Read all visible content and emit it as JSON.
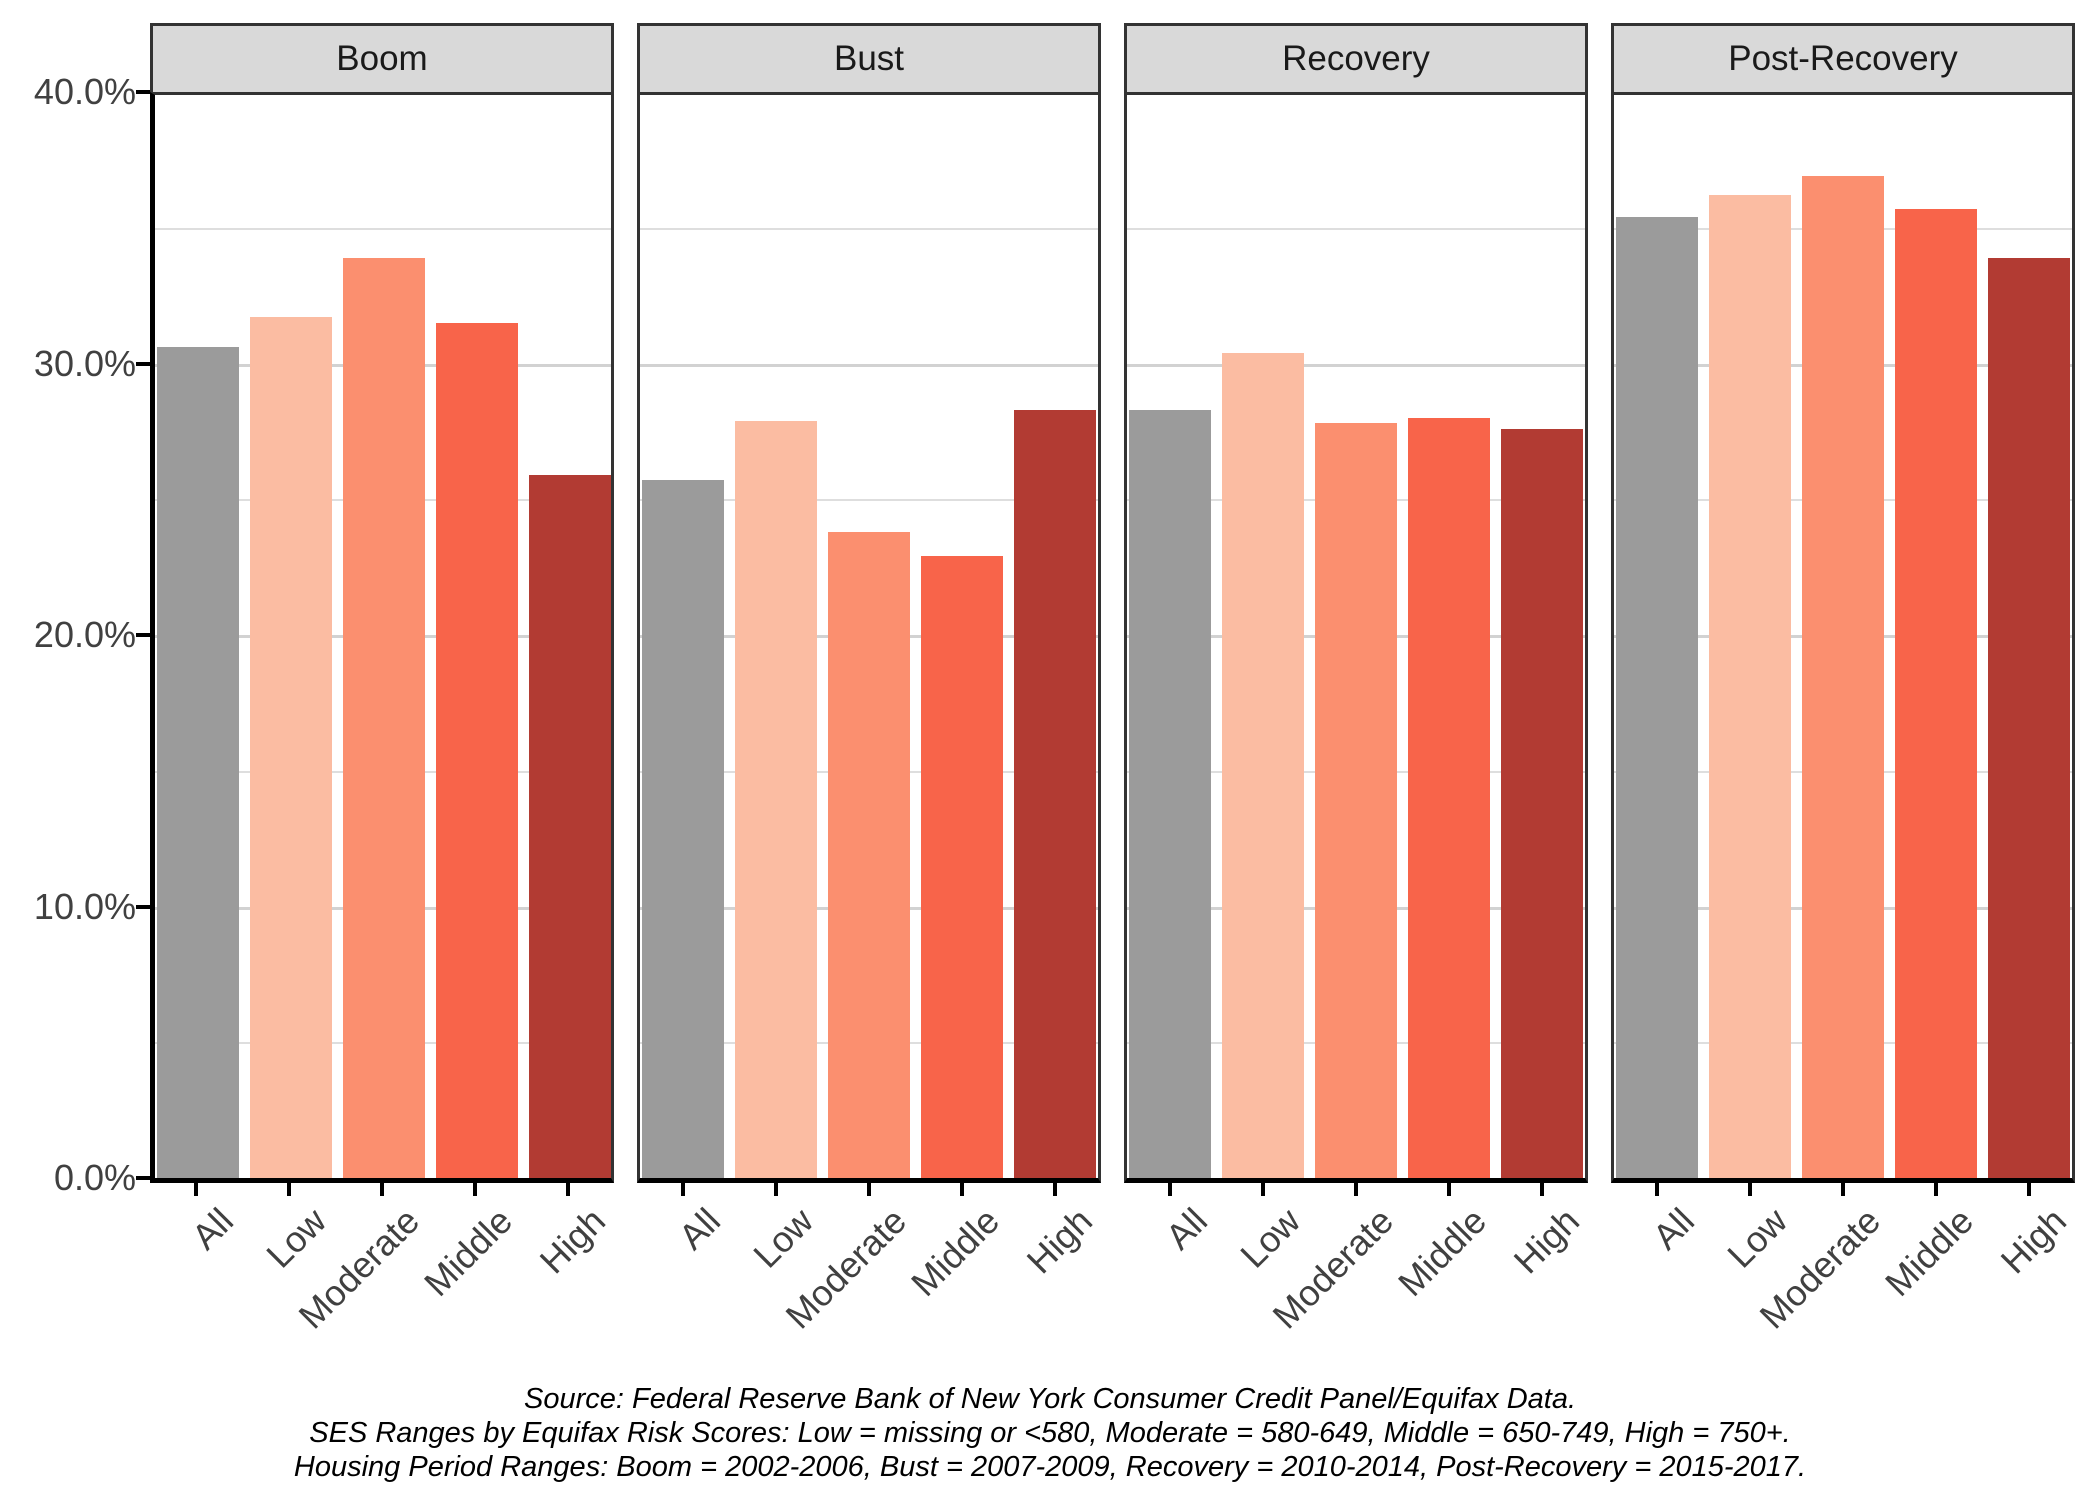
{
  "chart_data": {
    "type": "bar",
    "faceted": true,
    "categories": [
      "All",
      "Low",
      "Moderate",
      "Middle",
      "High"
    ],
    "facets": [
      {
        "label": "Boom",
        "values": [
          30.6,
          31.7,
          33.9,
          31.5,
          25.9
        ]
      },
      {
        "label": "Bust",
        "values": [
          25.7,
          27.9,
          23.8,
          22.9,
          28.3
        ]
      },
      {
        "label": "Recovery",
        "values": [
          28.3,
          30.4,
          27.8,
          28.0,
          27.6
        ]
      },
      {
        "label": "Post-Recovery",
        "values": [
          35.4,
          36.2,
          36.9,
          35.7,
          33.9
        ]
      }
    ],
    "y_axis": {
      "tick_labels": [
        "40.0%",
        "30.0%",
        "20.0%",
        "10.0%",
        "0.0%"
      ],
      "tick_values": [
        40,
        30,
        20,
        10,
        0
      ],
      "ylim": [
        0,
        40
      ],
      "major_gridlines": [
        10,
        20,
        30
      ],
      "minor_gridlines": [
        5,
        15,
        25,
        35
      ]
    },
    "legend_position": "none",
    "bar_colors": [
      "#9B9B9B",
      "#FBBCA2",
      "#FB8F6F",
      "#F8644A",
      "#B23B33"
    ]
  },
  "caption": {
    "lines": [
      "Source: Federal Reserve Bank of New York Consumer Credit Panel/Equifax Data.",
      "SES Ranges by Equifax Risk Scores: Low = missing or <580, Moderate = 580-649, Middle = 650-749, High = 750+.",
      "Housing Period Ranges: Boom = 2002-2006, Bust = 2007-2009, Recovery = 2010-2014, Post-Recovery = 2015-2017."
    ]
  },
  "colors": {
    "background": "#FFFFFF",
    "strip_background": "#D9D9D9",
    "strip_border": "#333333",
    "panel_border": "#333333",
    "axis_line": "#000000",
    "gridline_major": "#D2D2D2",
    "gridline_minor": "#DEDEDE",
    "tick_label": "#404040",
    "strip_text": "#1A1A1A"
  }
}
